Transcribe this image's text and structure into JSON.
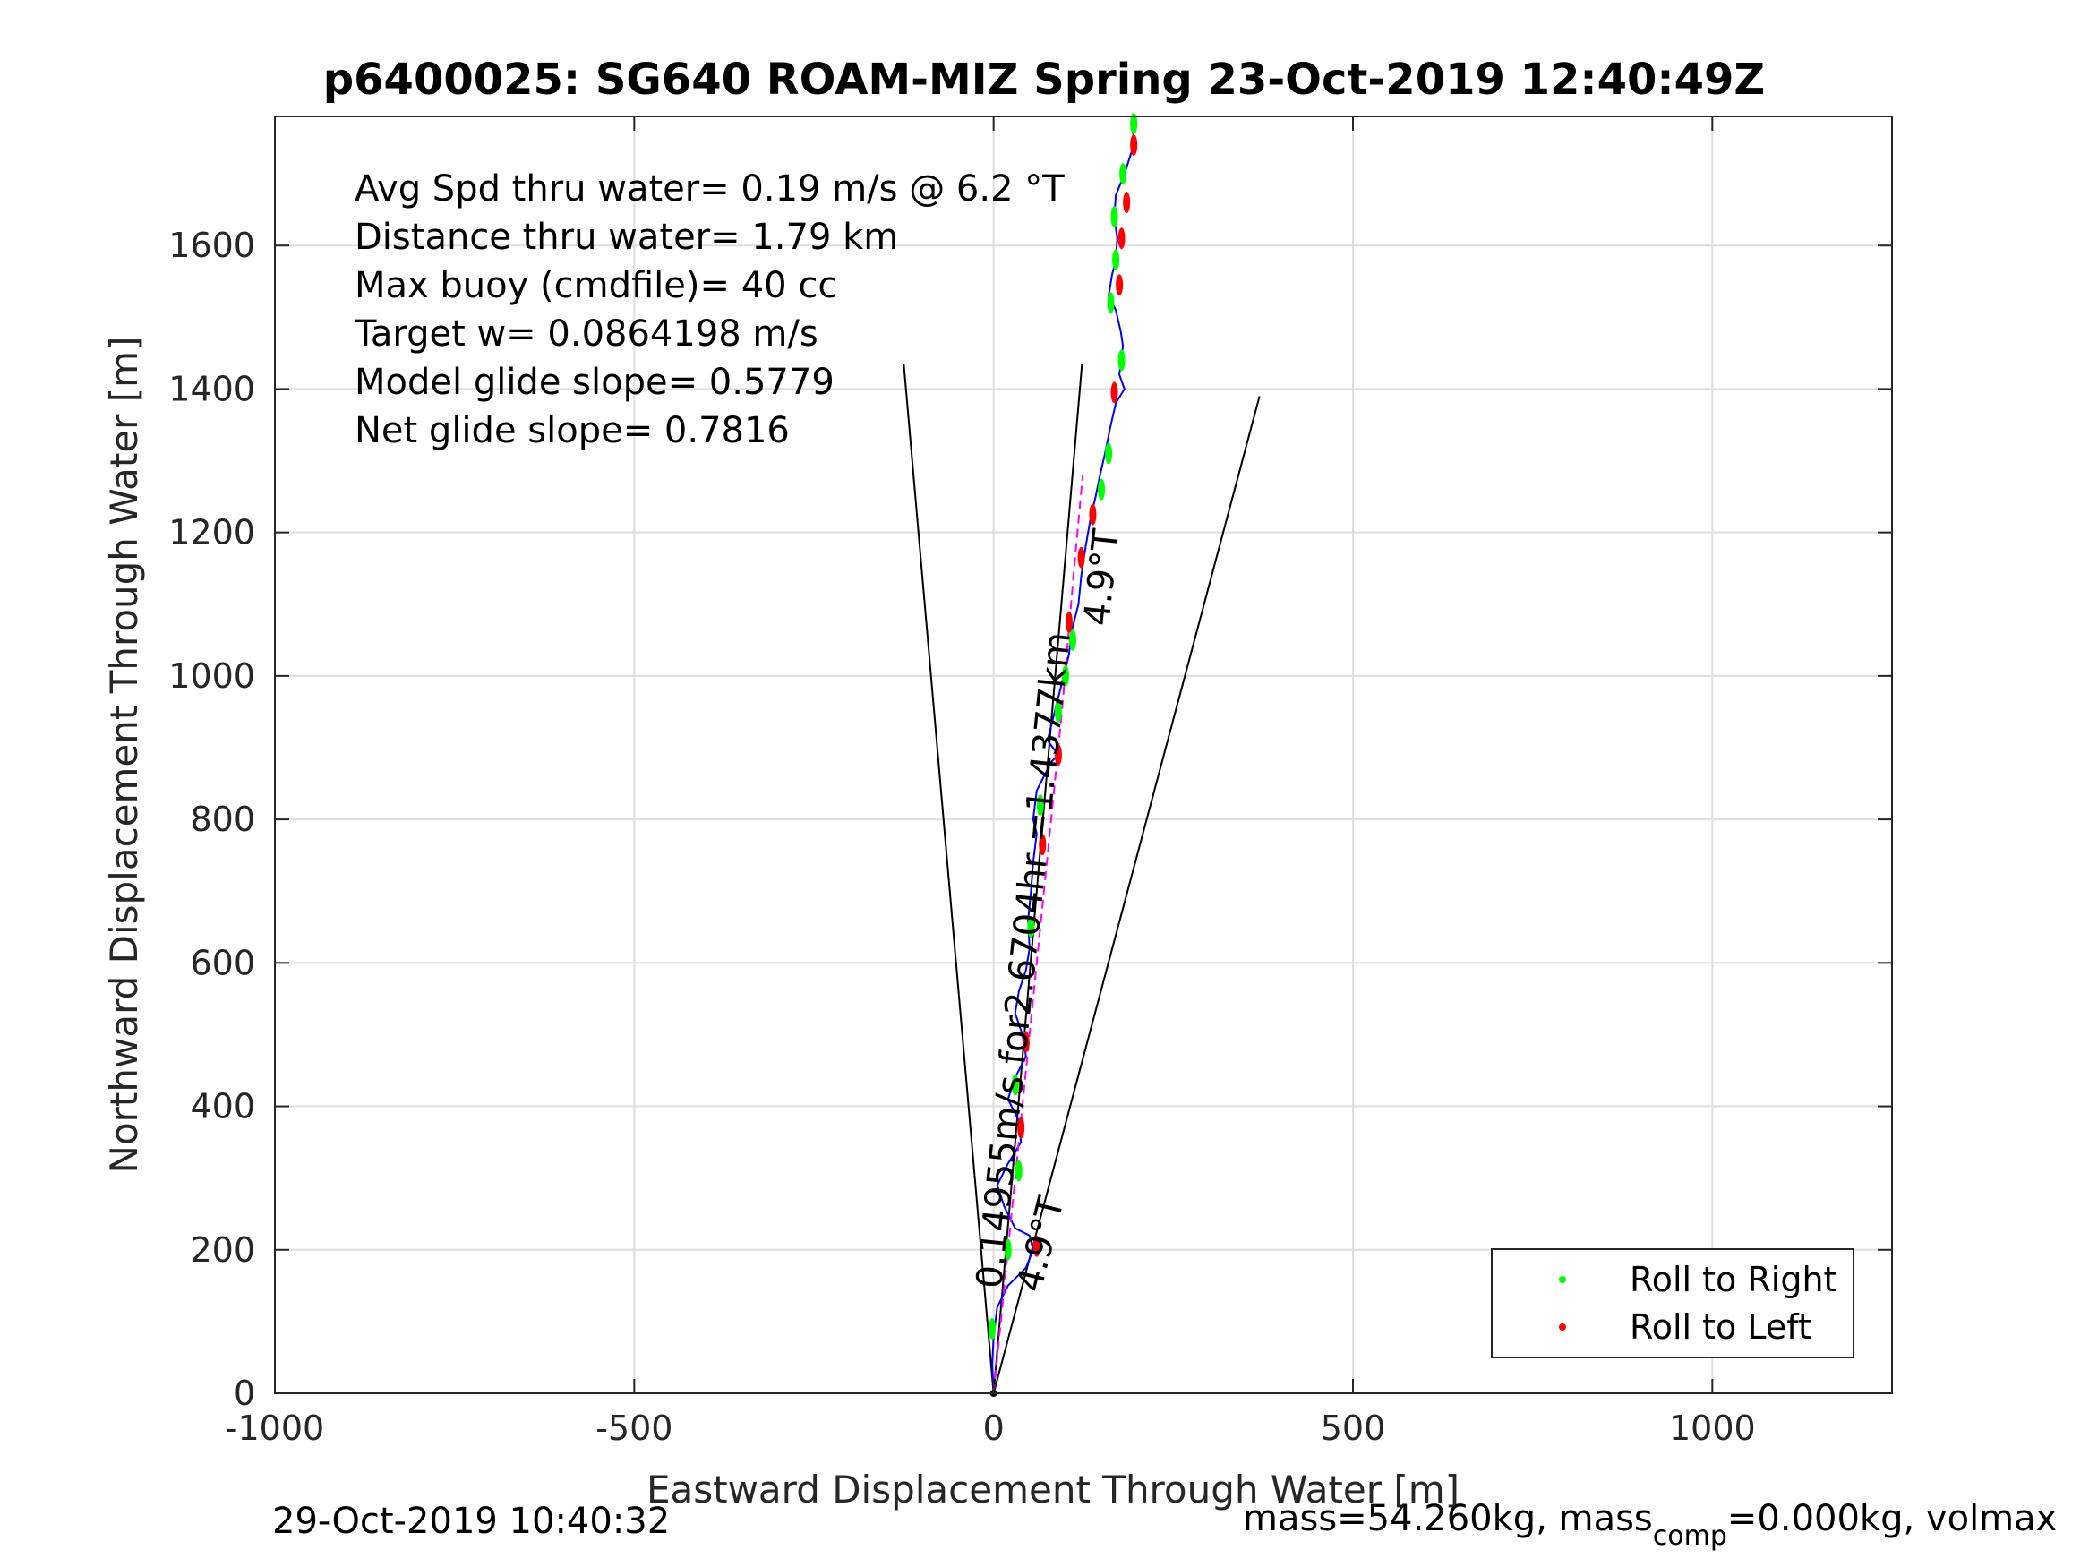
{
  "chart_data": {
    "type": "line",
    "title": "p6400025: SG640 ROAM-MIZ Spring 23-Oct-2019 12:40:49Z",
    "xlabel": "Eastward Displacement Through Water [m]",
    "ylabel": "Northward Displacement Through Water [m]",
    "xlim": [
      -1000,
      1250
    ],
    "ylim": [
      0,
      1780
    ],
    "xticks": [
      -1000,
      -500,
      0,
      500,
      1000
    ],
    "yticks": [
      0,
      200,
      400,
      600,
      800,
      1000,
      1200,
      1400,
      1600
    ],
    "grid": true,
    "legend_position": "bottom-right",
    "stats": [
      "Avg Spd thru water=  0.19 m/s @   6.2 °T",
      "Distance thru water=  1.79 km",
      "Max buoy (cmdfile)= 40 cc",
      "Target w= 0.0864198 m/s",
      "Model glide slope= 0.5779",
      "Net glide slope= 0.7816"
    ],
    "track_label": "0.14955m/s for2.6704hr =1.4377km",
    "heading_label_near": "4.9°T",
    "heading_label_far": "4.9°T",
    "footer_left": "29-Oct-2019 10:40:32",
    "footer_right_parts": [
      "mass=54.260kg, mass",
      "comp",
      "=0.000kg, volmax"
    ],
    "colors": {
      "track": "#0000ff",
      "dashed_path": "#ff00ff",
      "roll_right": "#00ff00",
      "roll_left": "#ff0000",
      "cone_lines": "#000000"
    },
    "series": [
      {
        "name": "track",
        "points": [
          [
            0,
            0
          ],
          [
            -2,
            40
          ],
          [
            0,
            80
          ],
          [
            5,
            120
          ],
          [
            20,
            150
          ],
          [
            45,
            175
          ],
          [
            55,
            200
          ],
          [
            50,
            220
          ],
          [
            30,
            230
          ],
          [
            15,
            260
          ],
          [
            5,
            290
          ],
          [
            20,
            320
          ],
          [
            38,
            350
          ],
          [
            35,
            380
          ],
          [
            20,
            410
          ],
          [
            30,
            440
          ],
          [
            45,
            470
          ],
          [
            40,
            500
          ],
          [
            30,
            530
          ],
          [
            35,
            560
          ],
          [
            45,
            590
          ],
          [
            50,
            620
          ],
          [
            48,
            660
          ],
          [
            52,
            700
          ],
          [
            55,
            740
          ],
          [
            60,
            780
          ],
          [
            55,
            800
          ],
          [
            60,
            840
          ],
          [
            80,
            880
          ],
          [
            90,
            890
          ],
          [
            75,
            910
          ],
          [
            85,
            950
          ],
          [
            95,
            990
          ],
          [
            105,
            1030
          ],
          [
            108,
            1060
          ],
          [
            118,
            1100
          ],
          [
            122,
            1140
          ],
          [
            128,
            1180
          ],
          [
            135,
            1220
          ],
          [
            142,
            1250
          ],
          [
            148,
            1280
          ],
          [
            155,
            1310
          ],
          [
            162,
            1345
          ],
          [
            170,
            1380
          ],
          [
            182,
            1400
          ],
          [
            175,
            1420
          ],
          [
            180,
            1460
          ],
          [
            177,
            1480
          ],
          [
            170,
            1510
          ],
          [
            160,
            1530
          ],
          [
            165,
            1560
          ],
          [
            170,
            1580
          ],
          [
            172,
            1610
          ],
          [
            168,
            1640
          ],
          [
            170,
            1670
          ],
          [
            182,
            1700
          ],
          [
            195,
            1740
          ],
          [
            193,
            1778
          ]
        ]
      },
      {
        "name": "dashed_path",
        "points": [
          [
            0,
            0
          ],
          [
            25,
            250
          ],
          [
            50,
            500
          ],
          [
            72,
            720
          ],
          [
            95,
            950
          ],
          [
            112,
            1150
          ],
          [
            124,
            1280
          ]
        ]
      },
      {
        "name": "Roll to Right",
        "points": [
          [
            -2,
            90
          ],
          [
            20,
            200
          ],
          [
            35,
            310
          ],
          [
            30,
            430
          ],
          [
            52,
            650
          ],
          [
            65,
            820
          ],
          [
            90,
            950
          ],
          [
            100,
            1000
          ],
          [
            110,
            1050
          ],
          [
            150,
            1260
          ],
          [
            160,
            1310
          ],
          [
            178,
            1440
          ],
          [
            163,
            1520
          ],
          [
            170,
            1580
          ],
          [
            168,
            1640
          ],
          [
            180,
            1700
          ],
          [
            195,
            1770
          ]
        ]
      },
      {
        "name": "Roll to Left",
        "points": [
          [
            60,
            205
          ],
          [
            38,
            370
          ],
          [
            45,
            490
          ],
          [
            68,
            765
          ],
          [
            90,
            890
          ],
          [
            105,
            1075
          ],
          [
            122,
            1165
          ],
          [
            138,
            1225
          ],
          [
            168,
            1395
          ],
          [
            175,
            1545
          ],
          [
            178,
            1610
          ],
          [
            185,
            1660
          ],
          [
            195,
            1740
          ]
        ]
      },
      {
        "name": "cone_left",
        "points": [
          [
            0,
            0
          ],
          [
            -125,
            1435
          ]
        ]
      },
      {
        "name": "cone_mid",
        "points": [
          [
            0,
            0
          ],
          [
            123,
            1435
          ]
        ]
      },
      {
        "name": "cone_right",
        "points": [
          [
            0,
            0
          ],
          [
            370,
            1390
          ]
        ]
      }
    ]
  }
}
